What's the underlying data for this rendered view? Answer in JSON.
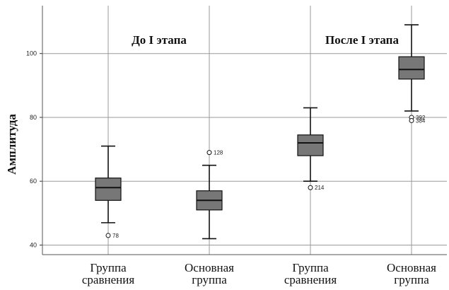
{
  "chart_data": {
    "type": "box",
    "ylabel": "Амплитуда",
    "ylim": [
      37,
      115
    ],
    "yticks": [
      40,
      60,
      80,
      100
    ],
    "grid": true,
    "panel_labels": [
      "До I этапа",
      "После I этапа"
    ],
    "categories": [
      [
        "Группа",
        "сравнения"
      ],
      [
        "Основная",
        "группа"
      ],
      [
        "Группа",
        "сравнения"
      ],
      [
        "Основная",
        "группа"
      ]
    ],
    "boxes": [
      {
        "whisker_low": 47,
        "q1": 54,
        "median": 58,
        "q3": 61,
        "whisker_high": 71,
        "outliers": [
          {
            "value": 43,
            "label": "78"
          }
        ]
      },
      {
        "whisker_low": 42,
        "q1": 51,
        "median": 54,
        "q3": 57,
        "whisker_high": 65,
        "outliers": [
          {
            "value": 69,
            "label": "128"
          }
        ]
      },
      {
        "whisker_low": 60,
        "q1": 68,
        "median": 72,
        "q3": 74.5,
        "whisker_high": 83,
        "outliers": [
          {
            "value": 58,
            "label": "214"
          }
        ]
      },
      {
        "whisker_low": 82,
        "q1": 92,
        "median": 95,
        "q3": 99,
        "whisker_high": 109,
        "outliers": [
          {
            "value": 80,
            "label": "392"
          },
          {
            "value": 79,
            "label": "384"
          }
        ]
      }
    ],
    "colors": {
      "box_fill": "#777777",
      "stroke": "#111111",
      "grid": "#9a9a9a"
    }
  }
}
